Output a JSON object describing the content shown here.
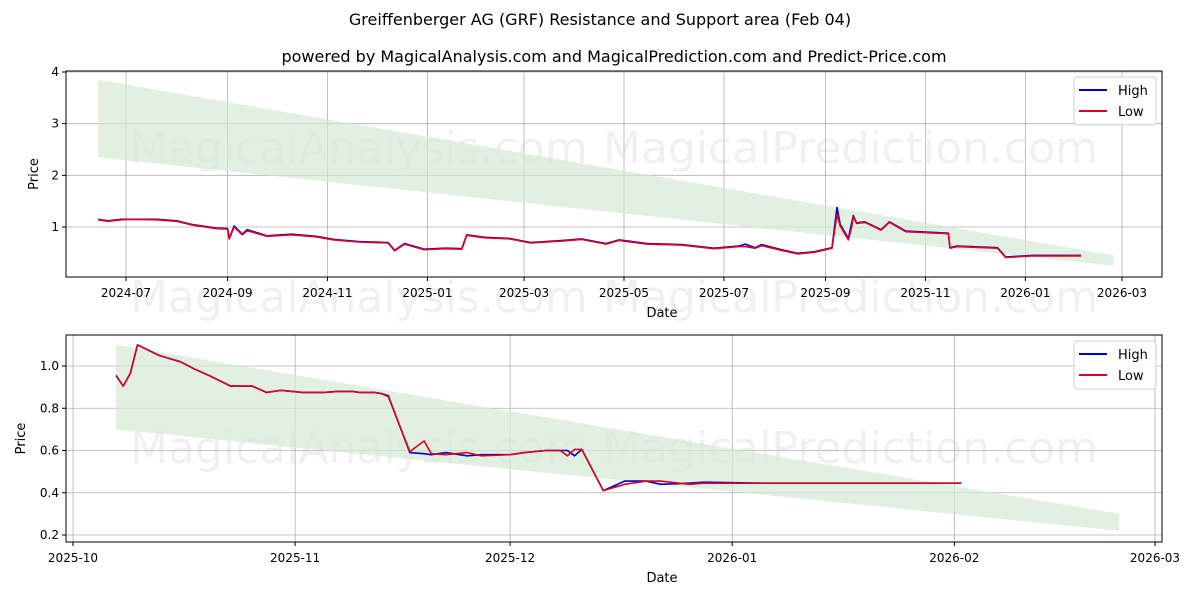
{
  "title": "Greiffenberger AG (GRF) Resistance and Support area (Feb 04)",
  "subtitle": "powered by MagicalAnalysis.com and MagicalPrediction.com and Predict-Price.com",
  "watermarks": [
    "MagicalAnalysis.com",
    "MagicalPrediction.com"
  ],
  "colors": {
    "high": "#0000cc",
    "low": "#dd0022",
    "band": "#d4ead4",
    "grid": "#b0b0b0"
  },
  "chart_data": [
    {
      "type": "line",
      "title": "",
      "xlabel": "Date",
      "ylabel": "Price",
      "grid": true,
      "legend_position": "upper right",
      "legend": [
        "High",
        "Low"
      ],
      "x_ticks": [
        "2024-07",
        "2024-09",
        "2024-11",
        "2025-01",
        "2025-03",
        "2025-05",
        "2025-07",
        "2025-09",
        "2025-11",
        "2026-01",
        "2026-03"
      ],
      "y_ticks": [
        "1",
        "2",
        "3",
        "4"
      ],
      "ylim": [
        0,
        4.05
      ],
      "band": {
        "x": [
          "2024-06-14",
          "2026-02-24"
        ],
        "upper": [
          3.85,
          0.45
        ],
        "lower": [
          2.35,
          0.25
        ]
      },
      "series": [
        {
          "name": "High",
          "x": [
            "2024-06-14",
            "2024-06-20",
            "2024-06-28",
            "2024-07-05",
            "2024-07-20",
            "2024-08-01",
            "2024-08-10",
            "2024-08-25",
            "2024-09-01",
            "2024-09-02",
            "2024-09-05",
            "2024-09-10",
            "2024-09-13",
            "2024-09-25",
            "2024-10-10",
            "2024-10-25",
            "2024-11-05",
            "2024-11-20",
            "2024-12-08",
            "2024-12-12",
            "2024-12-18",
            "2024-12-30",
            "2025-01-12",
            "2025-01-22",
            "2025-01-25",
            "2025-02-05",
            "2025-02-20",
            "2025-03-05",
            "2025-03-25",
            "2025-04-05",
            "2025-04-20",
            "2025-04-28",
            "2025-05-15",
            "2025-06-05",
            "2025-06-25",
            "2025-07-10",
            "2025-07-14",
            "2025-07-20",
            "2025-07-24",
            "2025-08-05",
            "2025-08-15",
            "2025-08-25",
            "2025-09-05",
            "2025-09-08",
            "2025-09-10",
            "2025-09-15",
            "2025-09-17",
            "2025-09-18",
            "2025-09-20",
            "2025-09-25",
            "2025-10-05",
            "2025-10-10",
            "2025-10-20",
            "2025-11-15",
            "2025-11-16",
            "2025-11-20",
            "2025-12-15",
            "2025-12-20",
            "2026-01-05",
            "2026-02-04"
          ],
          "values": [
            1.15,
            1.12,
            1.15,
            1.15,
            1.15,
            1.12,
            1.05,
            0.98,
            0.97,
            0.78,
            1.02,
            0.86,
            0.95,
            0.83,
            0.86,
            0.82,
            0.76,
            0.72,
            0.7,
            0.55,
            0.68,
            0.57,
            0.59,
            0.58,
            0.85,
            0.8,
            0.78,
            0.7,
            0.74,
            0.77,
            0.68,
            0.75,
            0.68,
            0.66,
            0.59,
            0.63,
            0.67,
            0.6,
            0.66,
            0.56,
            0.49,
            0.52,
            0.6,
            1.38,
            1.05,
            0.78,
            1.08,
            1.22,
            1.08,
            1.1,
            0.95,
            1.1,
            0.92,
            0.88,
            0.6,
            0.63,
            0.6,
            0.42,
            0.45,
            0.45
          ]
        },
        {
          "name": "Low",
          "x": [
            "2024-06-14",
            "2024-06-20",
            "2024-06-28",
            "2024-07-05",
            "2024-07-20",
            "2024-08-01",
            "2024-08-10",
            "2024-08-25",
            "2024-09-01",
            "2024-09-02",
            "2024-09-05",
            "2024-09-10",
            "2024-09-13",
            "2024-09-25",
            "2024-10-10",
            "2024-10-25",
            "2024-11-05",
            "2024-11-20",
            "2024-12-08",
            "2024-12-12",
            "2024-12-18",
            "2024-12-30",
            "2025-01-12",
            "2025-01-22",
            "2025-01-25",
            "2025-02-05",
            "2025-02-20",
            "2025-03-05",
            "2025-03-25",
            "2025-04-05",
            "2025-04-20",
            "2025-04-28",
            "2025-05-15",
            "2025-06-05",
            "2025-06-25",
            "2025-07-10",
            "2025-07-14",
            "2025-07-20",
            "2025-07-24",
            "2025-08-05",
            "2025-08-15",
            "2025-08-25",
            "2025-09-05",
            "2025-09-08",
            "2025-09-10",
            "2025-09-15",
            "2025-09-17",
            "2025-09-18",
            "2025-09-20",
            "2025-09-25",
            "2025-10-05",
            "2025-10-10",
            "2025-10-20",
            "2025-11-15",
            "2025-11-16",
            "2025-11-20",
            "2025-12-15",
            "2025-12-20",
            "2026-01-05",
            "2026-02-04"
          ],
          "values": [
            1.14,
            1.11,
            1.14,
            1.15,
            1.14,
            1.11,
            1.04,
            0.97,
            0.96,
            0.77,
            1.0,
            0.85,
            0.93,
            0.82,
            0.85,
            0.81,
            0.75,
            0.71,
            0.69,
            0.54,
            0.67,
            0.56,
            0.58,
            0.57,
            0.84,
            0.79,
            0.77,
            0.69,
            0.73,
            0.76,
            0.67,
            0.74,
            0.67,
            0.65,
            0.58,
            0.62,
            0.62,
            0.59,
            0.64,
            0.55,
            0.48,
            0.51,
            0.59,
            1.25,
            1.02,
            0.75,
            1.0,
            1.2,
            1.07,
            1.09,
            0.94,
            1.09,
            0.91,
            0.87,
            0.59,
            0.62,
            0.59,
            0.41,
            0.44,
            0.44
          ]
        }
      ]
    },
    {
      "type": "line",
      "title": "",
      "xlabel": "Date",
      "ylabel": "Price",
      "grid": true,
      "legend_position": "upper right",
      "legend": [
        "High",
        "Low"
      ],
      "x_ticks": [
        "2025-10",
        "2025-11",
        "2025-12",
        "2026-01",
        "2026-02",
        "2026-03"
      ],
      "y_ticks": [
        "0.2",
        "0.4",
        "0.6",
        "0.8",
        "1.0"
      ],
      "ylim": [
        0.17,
        1.14
      ],
      "band": {
        "x": [
          "2025-10-07",
          "2026-02-24"
        ],
        "upper": [
          1.1,
          0.3
        ],
        "lower": [
          0.7,
          0.22
        ]
      },
      "series": [
        {
          "name": "High",
          "x": [
            "2025-10-07",
            "2025-10-08",
            "2025-10-09",
            "2025-10-10",
            "2025-10-13",
            "2025-10-16",
            "2025-10-18",
            "2025-10-20",
            "2025-10-23",
            "2025-10-26",
            "2025-10-28",
            "2025-10-30",
            "2025-11-02",
            "2025-11-05",
            "2025-11-07",
            "2025-11-09",
            "2025-11-10",
            "2025-11-11",
            "2025-11-12",
            "2025-11-13",
            "2025-11-14",
            "2025-11-17",
            "2025-11-19",
            "2025-11-20",
            "2025-11-22",
            "2025-11-25",
            "2025-11-27",
            "2025-12-01",
            "2025-12-03",
            "2025-12-06",
            "2025-12-08",
            "2025-12-09",
            "2025-12-10",
            "2025-12-11",
            "2025-12-14",
            "2025-12-17",
            "2025-12-20",
            "2025-12-22",
            "2025-12-26",
            "2025-12-28",
            "2026-01-05",
            "2026-01-15",
            "2026-01-30",
            "2026-02-02"
          ],
          "values": [
            0.955,
            0.905,
            0.965,
            1.1,
            1.05,
            1.02,
            0.985,
            0.955,
            0.905,
            0.905,
            0.875,
            0.885,
            0.875,
            0.875,
            0.88,
            0.88,
            0.875,
            0.875,
            0.875,
            0.87,
            0.86,
            0.59,
            0.585,
            0.58,
            0.59,
            0.575,
            0.58,
            0.58,
            0.59,
            0.6,
            0.6,
            0.6,
            0.575,
            0.605,
            0.41,
            0.455,
            0.455,
            0.44,
            0.445,
            0.45,
            0.445,
            0.445,
            0.445,
            0.445
          ]
        },
        {
          "name": "Low",
          "x": [
            "2025-10-07",
            "2025-10-08",
            "2025-10-09",
            "2025-10-10",
            "2025-10-13",
            "2025-10-16",
            "2025-10-18",
            "2025-10-20",
            "2025-10-23",
            "2025-10-26",
            "2025-10-28",
            "2025-10-30",
            "2025-11-02",
            "2025-11-05",
            "2025-11-07",
            "2025-11-09",
            "2025-11-10",
            "2025-11-11",
            "2025-11-12",
            "2025-11-13",
            "2025-11-14",
            "2025-11-17",
            "2025-11-19",
            "2025-11-20",
            "2025-11-22",
            "2025-11-25",
            "2025-11-27",
            "2025-12-01",
            "2025-12-03",
            "2025-12-06",
            "2025-12-08",
            "2025-12-09",
            "2025-12-10",
            "2025-12-11",
            "2025-12-14",
            "2025-12-17",
            "2025-12-20",
            "2025-12-22",
            "2025-12-26",
            "2025-12-28",
            "2026-01-05",
            "2026-01-15",
            "2026-01-30",
            "2026-02-02"
          ],
          "values": [
            0.955,
            0.905,
            0.965,
            1.1,
            1.05,
            1.02,
            0.985,
            0.955,
            0.905,
            0.905,
            0.875,
            0.885,
            0.875,
            0.875,
            0.88,
            0.88,
            0.875,
            0.875,
            0.875,
            0.87,
            0.855,
            0.595,
            0.645,
            0.585,
            0.58,
            0.59,
            0.575,
            0.58,
            0.59,
            0.6,
            0.6,
            0.575,
            0.605,
            0.605,
            0.41,
            0.44,
            0.455,
            0.455,
            0.44,
            0.445,
            0.445,
            0.445,
            0.445,
            0.445
          ]
        }
      ]
    }
  ]
}
